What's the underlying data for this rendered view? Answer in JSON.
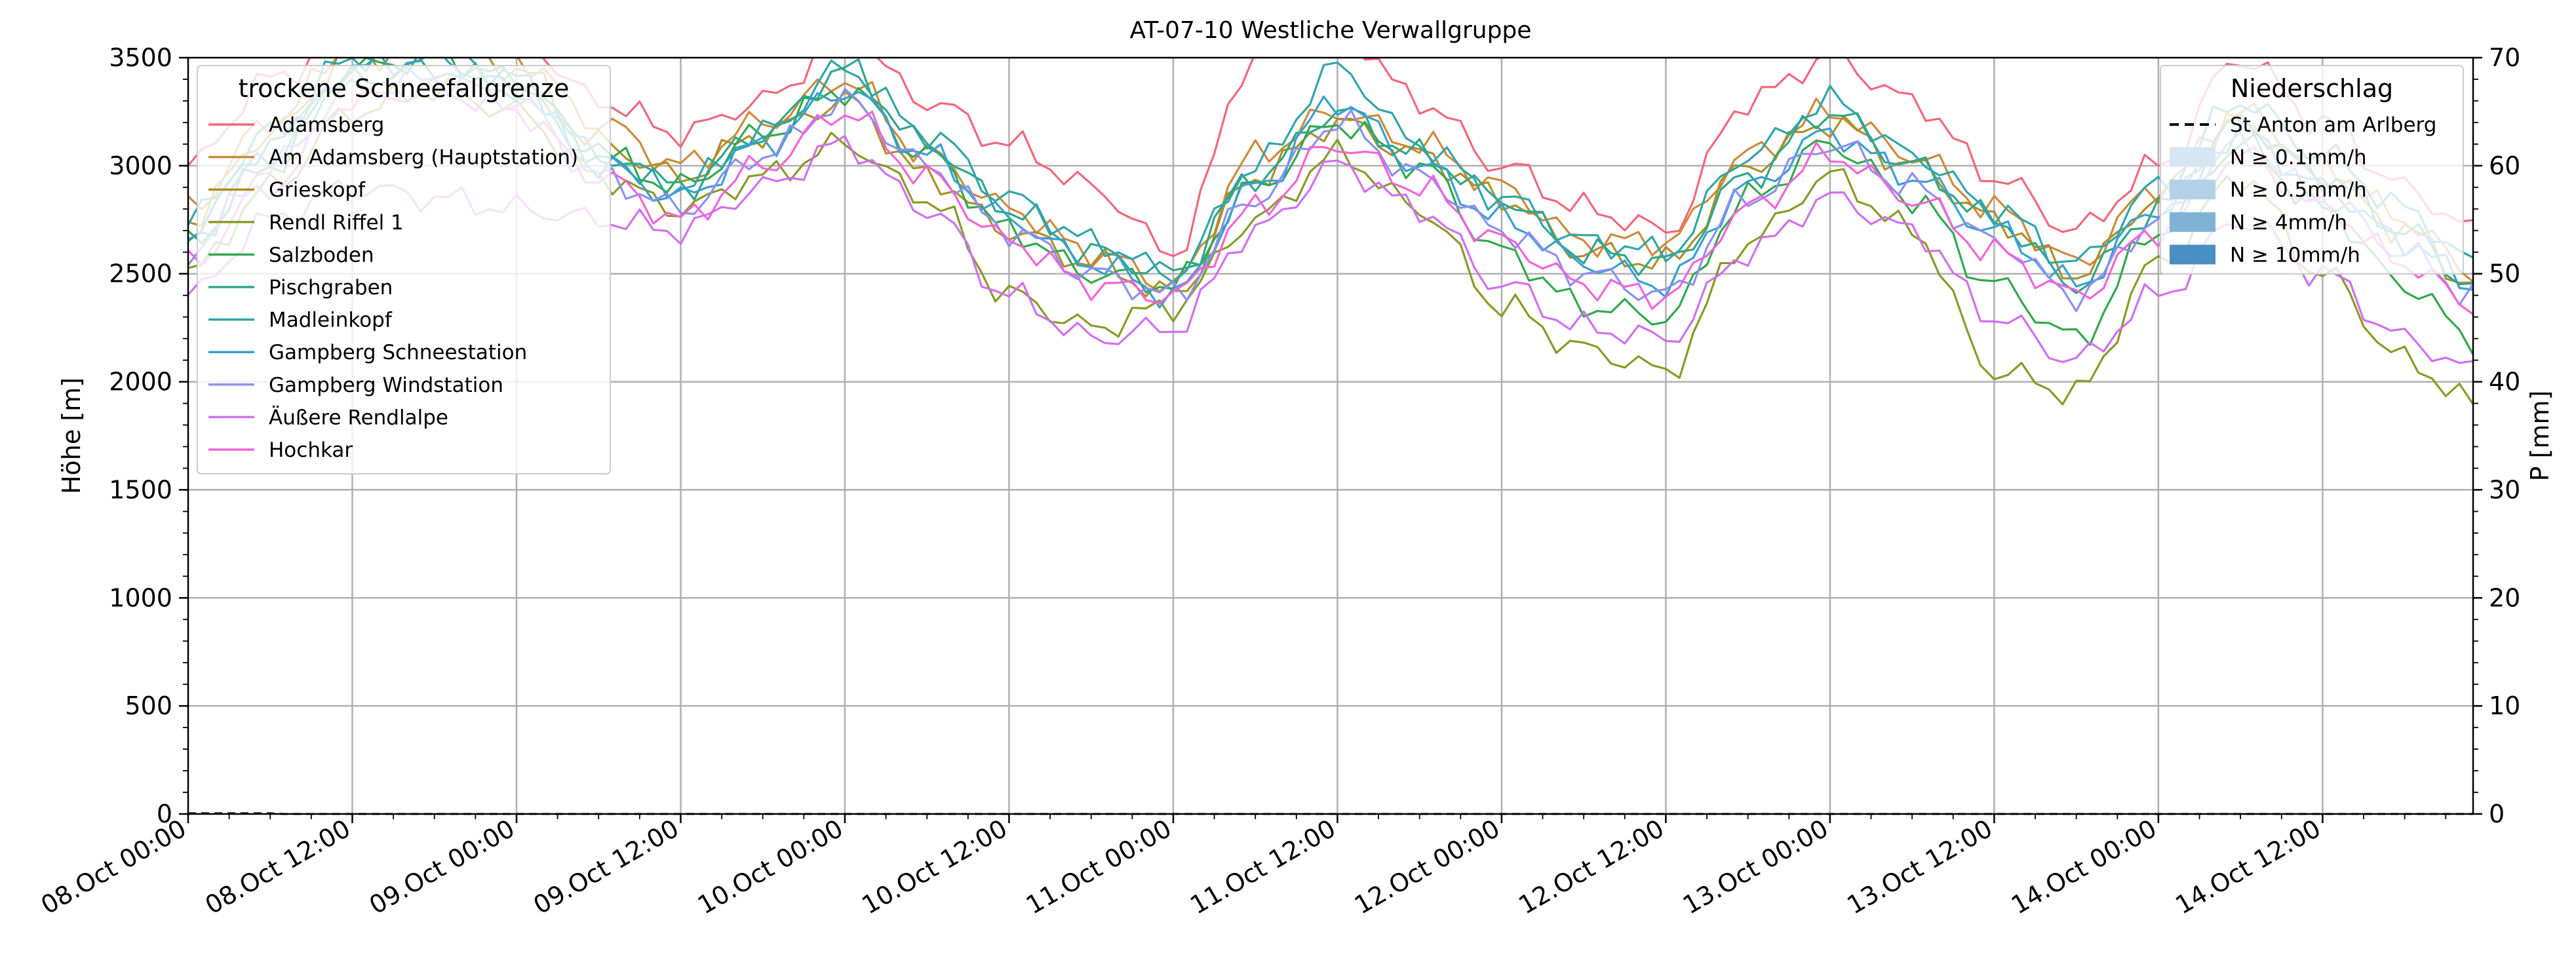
{
  "chart_data": {
    "type": "line",
    "title": "AT-07-10 Westliche Verwallgruppe",
    "ylabel": "Höhe [m]",
    "ylabel_right": "P [mm]",
    "ylim": [
      0,
      3500
    ],
    "ylim_right": [
      0,
      70
    ],
    "yticks": [
      "0",
      "500",
      "1000",
      "1500",
      "2000",
      "2500",
      "3000",
      "3500"
    ],
    "yticks_right": [
      "0",
      "10",
      "20",
      "30",
      "40",
      "50",
      "60",
      "70"
    ],
    "xlim_hours": [
      0,
      167
    ],
    "xtick_labels": [
      "08.Oct 00:00",
      "08.Oct 12:00",
      "09.Oct 00:00",
      "09.Oct 12:00",
      "10.Oct 00:00",
      "10.Oct 12:00",
      "11.Oct 00:00",
      "11.Oct 12:00",
      "12.Oct 00:00",
      "12.Oct 12:00",
      "13.Oct 00:00",
      "13.Oct 12:00",
      "14.Oct 00:00",
      "14.Oct 12:00"
    ],
    "grid": true,
    "legend_left": {
      "title": "trockene Schneefallgrenze",
      "placement": "upper-left"
    },
    "legend_right": {
      "title": "Niederschlag",
      "placement": "upper-right",
      "entries": [
        {
          "label": "St Anton am Arlberg",
          "style": "dashed",
          "color": "#000000"
        },
        {
          "label": "N ≥ 0.1mm/h",
          "color": "#d6e6f4"
        },
        {
          "label": "N ≥ 0.5mm/h",
          "color": "#b3d1e8"
        },
        {
          "label": "N ≥ 4mm/h",
          "color": "#7fb3d5"
        },
        {
          "label": "N ≥ 10mm/h",
          "color": "#4a8fc4"
        }
      ]
    },
    "precip_series": {
      "name": "St Anton am Arlberg",
      "values_mm": [
        1,
        1,
        1,
        1,
        1,
        1,
        1,
        0,
        0,
        0
      ]
    },
    "anchor_hours": [
      0,
      6,
      12,
      18,
      24,
      30,
      36,
      42,
      48,
      54,
      60,
      66,
      72,
      78,
      84,
      90,
      96,
      102,
      108,
      114,
      120,
      126,
      132,
      138,
      144,
      150,
      156,
      162,
      167
    ],
    "series": [
      {
        "name": "Adamsberg",
        "color": "#f0687d",
        "values": [
          3000,
          3400,
          3600,
          3700,
          3600,
          3300,
          3150,
          3300,
          3600,
          3300,
          3100,
          2900,
          2600,
          3500,
          3650,
          3300,
          3000,
          2800,
          2700,
          3300,
          3500,
          3300,
          2950,
          2700,
          3000,
          3500,
          3200,
          2900,
          2700
        ]
      },
      {
        "name": "Am Adamsberg (Hauptstation)",
        "color": "#cd8a3a",
        "values": [
          2800,
          3200,
          3550,
          3600,
          3500,
          3200,
          3000,
          3200,
          3400,
          3050,
          2800,
          2600,
          2450,
          3050,
          3250,
          3100,
          2900,
          2650,
          2650,
          3050,
          3250,
          3050,
          2800,
          2550,
          2900,
          3250,
          3000,
          2750,
          2500
        ]
      },
      {
        "name": "Grieskopf",
        "color": "#ae8f27",
        "values": [
          2750,
          3150,
          3500,
          3550,
          3450,
          3100,
          2950,
          3150,
          3300,
          2950,
          2700,
          2550,
          2400,
          2950,
          3200,
          3050,
          2850,
          2600,
          2550,
          3000,
          3200,
          3000,
          2750,
          2500,
          2850,
          3200,
          2950,
          2700,
          2450
        ]
      },
      {
        "name": "Rendl Riffel 1",
        "color": "#8a9a27",
        "values": [
          2500,
          2900,
          3250,
          3350,
          3250,
          2950,
          2800,
          2950,
          3100,
          2850,
          2400,
          2250,
          2350,
          2750,
          3050,
          2800,
          2350,
          2150,
          2050,
          2650,
          2950,
          2700,
          2050,
          1950,
          2550,
          2950,
          2500,
          2100,
          1900
        ]
      },
      {
        "name": "Salzboden",
        "color": "#32a84d",
        "values": [
          2650,
          3000,
          3450,
          3500,
          3400,
          3050,
          2900,
          3150,
          3350,
          3050,
          2700,
          2500,
          2450,
          2900,
          3200,
          3000,
          2600,
          2350,
          2300,
          2850,
          3100,
          2850,
          2450,
          2200,
          2700,
          3100,
          2800,
          2450,
          2200
        ]
      },
      {
        "name": "Pischgraben",
        "color": "#2fa68c",
        "values": [
          2700,
          3100,
          3400,
          3450,
          3350,
          3050,
          2900,
          3150,
          3450,
          3100,
          2800,
          2600,
          2500,
          2950,
          3250,
          3050,
          2850,
          2600,
          2550,
          2950,
          3250,
          3000,
          2750,
          2450,
          2800,
          3200,
          2950,
          2700,
          2450
        ]
      },
      {
        "name": "Madleinkopf",
        "color": "#31a5a8",
        "values": [
          2750,
          3150,
          3500,
          3550,
          3400,
          3050,
          2900,
          3150,
          3450,
          3150,
          2850,
          2650,
          2500,
          3000,
          3450,
          3100,
          2850,
          2650,
          2600,
          3050,
          3300,
          3050,
          2800,
          2550,
          2900,
          3300,
          3050,
          2800,
          2550
        ]
      },
      {
        "name": "Gampberg Schneestation",
        "color": "#38a0cf",
        "values": [
          2650,
          3050,
          3450,
          3500,
          3350,
          3000,
          2850,
          3100,
          3350,
          3050,
          2750,
          2550,
          2400,
          2900,
          3300,
          3000,
          2750,
          2550,
          2450,
          2900,
          3150,
          2950,
          2700,
          2450,
          2800,
          3150,
          2900,
          2650,
          2450
        ]
      },
      {
        "name": "Gampberg Windstation",
        "color": "#8c90f0",
        "values": [
          2600,
          3000,
          3350,
          3400,
          3300,
          2950,
          2800,
          3050,
          3300,
          3000,
          2700,
          2500,
          2400,
          2850,
          3200,
          2950,
          2700,
          2500,
          2400,
          2850,
          3100,
          2900,
          2650,
          2400,
          2750,
          3100,
          2850,
          2600,
          2400
        ]
      },
      {
        "name": "Äußere Rendlalpe",
        "color": "#d070f0",
        "values": [
          2400,
          2750,
          2900,
          2850,
          2800,
          2750,
          2700,
          2900,
          3100,
          2800,
          2400,
          2200,
          2250,
          2700,
          3000,
          2800,
          2450,
          2250,
          2200,
          2600,
          2850,
          2700,
          2300,
          2100,
          2400,
          2750,
          2500,
          2200,
          2050
        ]
      },
      {
        "name": "Hochkar",
        "color": "#f065d8",
        "values": [
          2550,
          2900,
          3300,
          3350,
          3250,
          2950,
          2750,
          3000,
          3250,
          2950,
          2650,
          2450,
          2400,
          2800,
          3100,
          2900,
          2650,
          2450,
          2400,
          2800,
          3050,
          2850,
          2600,
          2400,
          2700,
          3050,
          2800,
          2550,
          2350
        ]
      }
    ]
  }
}
